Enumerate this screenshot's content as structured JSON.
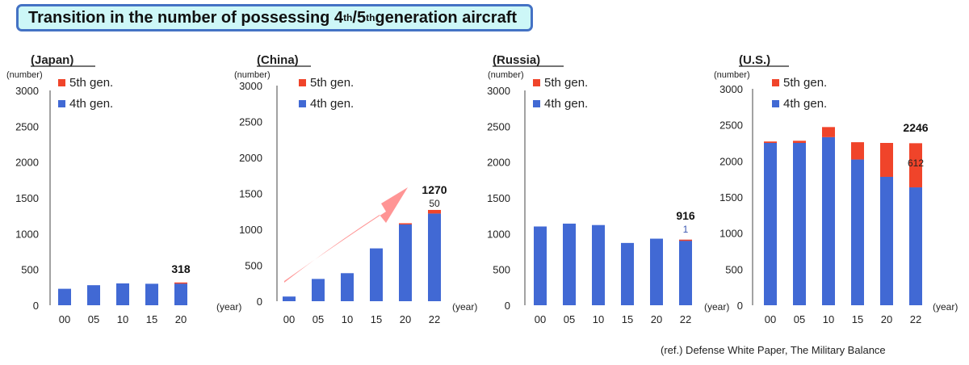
{
  "title": {
    "part1": "Transition in the number of possessing 4",
    "sup1": "th",
    "part2": "/5",
    "sup2": "th",
    "part3": " generation aircraft"
  },
  "reference": "(ref.)  Defense White Paper, The Military Balance",
  "colors": {
    "gen4": "#4169d4",
    "gen5": "#f0442a",
    "arrow": "#ff8f8f"
  },
  "chart_data": [
    {
      "type": "bar",
      "title": "(Japan)",
      "ylabel": "(number)",
      "xlabel": "(year)",
      "ylim": [
        0,
        3000
      ],
      "yticks": [
        "3000",
        "2500",
        "2000",
        "1500",
        "1000",
        "500",
        "0"
      ],
      "categories": [
        "00",
        "05",
        "10",
        "15",
        "20"
      ],
      "series": [
        {
          "name": "4th gen.",
          "values": [
            230,
            280,
            305,
            300,
            303
          ]
        },
        {
          "name": "5th gen.",
          "values": [
            0,
            0,
            0,
            0,
            15
          ]
        }
      ],
      "total_label": "318",
      "legend": "top-left"
    },
    {
      "type": "bar",
      "title": "(China)",
      "ylabel": "(number)",
      "xlabel": "(year)",
      "ylim": [
        0,
        3000
      ],
      "yticks": [
        "3000",
        "2500",
        "2000",
        "1500",
        "1000",
        "500",
        "0"
      ],
      "categories": [
        "00",
        "05",
        "10",
        "15",
        "20",
        "22"
      ],
      "series": [
        {
          "name": "4th gen.",
          "values": [
            65,
            310,
            390,
            735,
            1070,
            1220
          ]
        },
        {
          "name": "5th gen.",
          "values": [
            0,
            0,
            0,
            0,
            15,
            50
          ]
        }
      ],
      "total_label": "1270",
      "sub_label": "50",
      "legend": "top-left"
    },
    {
      "type": "bar",
      "title": "(Russia)",
      "ylabel": "(number)",
      "xlabel": "(year)",
      "ylim": [
        0,
        3000
      ],
      "yticks": [
        "3000",
        "2500",
        "2000",
        "1500",
        "1000",
        "500",
        "0"
      ],
      "categories": [
        "00",
        "05",
        "10",
        "15",
        "20",
        "22"
      ],
      "series": [
        {
          "name": "4th gen.",
          "values": [
            1100,
            1140,
            1120,
            870,
            930,
            915
          ]
        },
        {
          "name": "5th gen.",
          "values": [
            0,
            0,
            0,
            0,
            0,
            1
          ]
        }
      ],
      "total_label": "916",
      "sub_label": "1",
      "legend": "top-left"
    },
    {
      "type": "bar",
      "title": "(U.S.)",
      "ylabel": "(number)",
      "xlabel": "(year)",
      "ylim": [
        0,
        3000
      ],
      "yticks": [
        "3000",
        "2500",
        "2000",
        "1500",
        "1000",
        "500",
        "0"
      ],
      "categories": [
        "00",
        "05",
        "10",
        "15",
        "20",
        "22"
      ],
      "series": [
        {
          "name": "4th gen.",
          "values": [
            2250,
            2250,
            2330,
            2020,
            1780,
            1634
          ]
        },
        {
          "name": "5th gen.",
          "values": [
            20,
            30,
            140,
            240,
            470,
            612
          ]
        }
      ],
      "total_label": "2246",
      "sub_label": "612",
      "legend": "top-left"
    }
  ]
}
